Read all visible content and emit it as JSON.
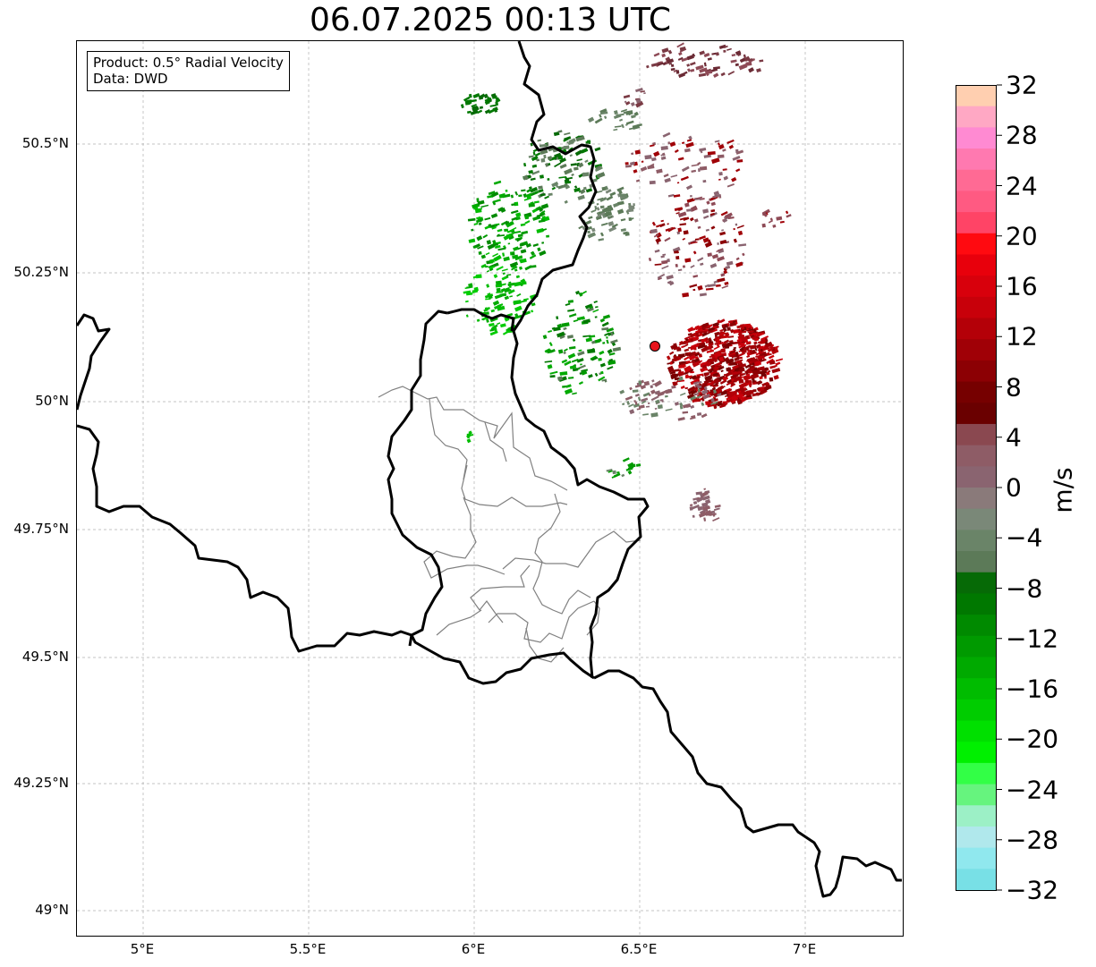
{
  "map": {
    "title": "06.07.2025 00:13 UTC",
    "info": {
      "product": "Product: 0.5° Radial Velocity",
      "source": "Data: DWD"
    },
    "lat_labels": [
      "50.5°N",
      "50.25°N",
      "50°N",
      "49.75°N",
      "49.5°N",
      "49.25°N",
      "49°N"
    ],
    "lon_labels": [
      "5°E",
      "5.5°E",
      "6°E",
      "6.5°E",
      "7°E"
    ],
    "radar_site_color": "#e8141c",
    "border_color": "#000000",
    "district_color": "#808080",
    "grid_color": "#b0b0b0"
  },
  "colorbar": {
    "unit": "m/s",
    "tick_labels": [
      "32",
      "28",
      "24",
      "20",
      "16",
      "12",
      "8",
      "4",
      "0",
      "−4",
      "−8",
      "−12",
      "−16",
      "−20",
      "−24",
      "−28",
      "−32"
    ],
    "colors_top_to_bottom": [
      "#ffcfb0",
      "#ffa8c4",
      "#ff8ad2",
      "#ff79b0",
      "#ff6a94",
      "#ff5a82",
      "#ff4466",
      "#ff0a10",
      "#e8000c",
      "#d8000c",
      "#c8000a",
      "#b40008",
      "#a00006",
      "#8c0004",
      "#760000",
      "#6a0000",
      "#8a4850",
      "#8e5c66",
      "#8a6470",
      "#8a7a7a",
      "#7a8878",
      "#6a8468",
      "#5c7a58",
      "#066a06",
      "#007800",
      "#008a00",
      "#009a00",
      "#00aa00",
      "#00bc00",
      "#00cc00",
      "#00e000",
      "#00f000",
      "#32ff46",
      "#66f47e",
      "#9cf0c6",
      "#b0e8ec",
      "#90e8ee",
      "#78e0e6"
    ]
  }
}
